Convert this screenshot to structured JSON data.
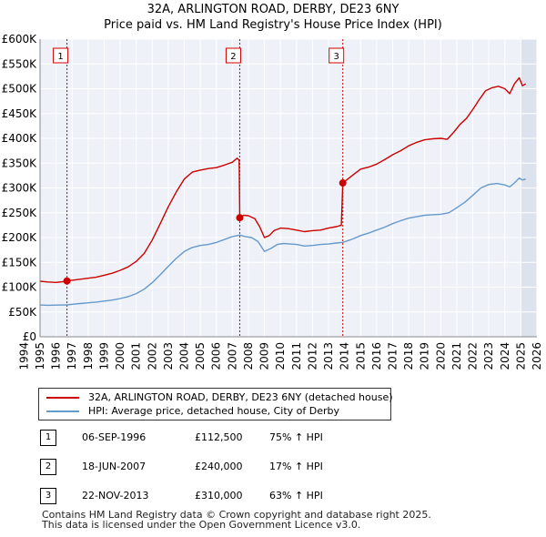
{
  "header": {
    "title_line1": "32A, ARLINGTON ROAD, DERBY, DE23 6NY",
    "title_line2": "Price paid vs. HM Land Registry's House Price Index (HPI)"
  },
  "chart_data": {
    "type": "line",
    "title": "32A, ARLINGTON ROAD, DERBY, DE23 6NY — Price paid vs. HM Land Registry's House Price Index (HPI)",
    "xlim": [
      1995.0,
      2026.0
    ],
    "ylim": [
      0,
      600000
    ],
    "x_ticks": [
      1994,
      1995,
      1996,
      1997,
      1998,
      1999,
      2000,
      2001,
      2002,
      2003,
      2004,
      2005,
      2006,
      2007,
      2008,
      2009,
      2010,
      2011,
      2012,
      2013,
      2014,
      2015,
      2016,
      2017,
      2018,
      2019,
      2020,
      2021,
      2022,
      2023,
      2024,
      2025,
      2026
    ],
    "y_ticks": [
      {
        "value": 0,
        "label": "£0"
      },
      {
        "value": 50000,
        "label": "£50K"
      },
      {
        "value": 100000,
        "label": "£100K"
      },
      {
        "value": 150000,
        "label": "£150K"
      },
      {
        "value": 200000,
        "label": "£200K"
      },
      {
        "value": 250000,
        "label": "£250K"
      },
      {
        "value": 300000,
        "label": "£300K"
      },
      {
        "value": 350000,
        "label": "£350K"
      },
      {
        "value": 400000,
        "label": "£400K"
      },
      {
        "value": 450000,
        "label": "£450K"
      },
      {
        "value": 500000,
        "label": "£500K"
      },
      {
        "value": 550000,
        "label": "£550K"
      },
      {
        "value": 600000,
        "label": "£600K"
      }
    ],
    "grid": true,
    "future_shade_from": 2025.0,
    "series": [
      {
        "name": "32A, ARLINGTON ROAD, DERBY, DE23 6NY (detached house)",
        "color": "#cc0000",
        "points": [
          [
            1995.0,
            112000
          ],
          [
            1995.5,
            110500
          ],
          [
            1996.0,
            109500
          ],
          [
            1996.4,
            111000
          ],
          [
            1996.68,
            112500
          ],
          [
            1997.0,
            114000
          ],
          [
            1997.5,
            116000
          ],
          [
            1998.0,
            118000
          ],
          [
            1998.5,
            120000
          ],
          [
            1999.0,
            124000
          ],
          [
            1999.5,
            128000
          ],
          [
            2000.0,
            134000
          ],
          [
            2000.5,
            141000
          ],
          [
            2001.0,
            152000
          ],
          [
            2001.5,
            168000
          ],
          [
            2002.0,
            195000
          ],
          [
            2002.5,
            228000
          ],
          [
            2003.0,
            262000
          ],
          [
            2003.5,
            292000
          ],
          [
            2004.0,
            318000
          ],
          [
            2004.5,
            332000
          ],
          [
            2005.0,
            336000
          ],
          [
            2005.5,
            339000
          ],
          [
            2006.0,
            341000
          ],
          [
            2006.5,
            346000
          ],
          [
            2007.0,
            352000
          ],
          [
            2007.3,
            360000
          ],
          [
            2007.42,
            356000
          ],
          [
            2007.46,
            240000
          ],
          [
            2007.7,
            245000
          ],
          [
            2008.0,
            244000
          ],
          [
            2008.4,
            238000
          ],
          [
            2008.7,
            222000
          ],
          [
            2009.0,
            200000
          ],
          [
            2009.3,
            204000
          ],
          [
            2009.6,
            214000
          ],
          [
            2010.0,
            219000
          ],
          [
            2010.5,
            218000
          ],
          [
            2011.0,
            215000
          ],
          [
            2011.5,
            212000
          ],
          [
            2012.0,
            214000
          ],
          [
            2012.5,
            215000
          ],
          [
            2013.0,
            219000
          ],
          [
            2013.5,
            222000
          ],
          [
            2013.8,
            225000
          ],
          [
            2013.89,
            310000
          ],
          [
            2014.2,
            318000
          ],
          [
            2014.6,
            328000
          ],
          [
            2015.0,
            338000
          ],
          [
            2015.5,
            342000
          ],
          [
            2016.0,
            348000
          ],
          [
            2016.5,
            357000
          ],
          [
            2017.0,
            367000
          ],
          [
            2017.5,
            375000
          ],
          [
            2018.0,
            385000
          ],
          [
            2018.5,
            392000
          ],
          [
            2019.0,
            397000
          ],
          [
            2019.5,
            399000
          ],
          [
            2020.0,
            400000
          ],
          [
            2020.4,
            398000
          ],
          [
            2020.8,
            412000
          ],
          [
            2021.2,
            428000
          ],
          [
            2021.6,
            440000
          ],
          [
            2022.0,
            458000
          ],
          [
            2022.4,
            478000
          ],
          [
            2022.8,
            496000
          ],
          [
            2023.2,
            502000
          ],
          [
            2023.6,
            505000
          ],
          [
            2024.0,
            500000
          ],
          [
            2024.3,
            490000
          ],
          [
            2024.6,
            510000
          ],
          [
            2024.9,
            522000
          ],
          [
            2025.1,
            506000
          ],
          [
            2025.3,
            510000
          ]
        ]
      },
      {
        "name": "HPI: Average price, detached house, City of Derby",
        "color": "#6699cc",
        "points": [
          [
            1995.0,
            64000
          ],
          [
            1995.5,
            63500
          ],
          [
            1996.0,
            63800
          ],
          [
            1996.68,
            64300
          ],
          [
            1997.0,
            65500
          ],
          [
            1997.5,
            67000
          ],
          [
            1998.0,
            68500
          ],
          [
            1998.5,
            70000
          ],
          [
            1999.0,
            72000
          ],
          [
            1999.5,
            74000
          ],
          [
            2000.0,
            77000
          ],
          [
            2000.5,
            81000
          ],
          [
            2001.0,
            87000
          ],
          [
            2001.5,
            96000
          ],
          [
            2002.0,
            109000
          ],
          [
            2002.5,
            125000
          ],
          [
            2003.0,
            142000
          ],
          [
            2003.5,
            158000
          ],
          [
            2004.0,
            172000
          ],
          [
            2004.5,
            180000
          ],
          [
            2005.0,
            184000
          ],
          [
            2005.5,
            186000
          ],
          [
            2006.0,
            190000
          ],
          [
            2006.5,
            196000
          ],
          [
            2007.0,
            202000
          ],
          [
            2007.46,
            205000
          ],
          [
            2007.8,
            202000
          ],
          [
            2008.2,
            200000
          ],
          [
            2008.6,
            192000
          ],
          [
            2009.0,
            172000
          ],
          [
            2009.4,
            178000
          ],
          [
            2009.8,
            186000
          ],
          [
            2010.2,
            188000
          ],
          [
            2010.6,
            187000
          ],
          [
            2011.0,
            186000
          ],
          [
            2011.5,
            183000
          ],
          [
            2012.0,
            184000
          ],
          [
            2012.5,
            186000
          ],
          [
            2013.0,
            187000
          ],
          [
            2013.5,
            189000
          ],
          [
            2013.89,
            190200
          ],
          [
            2014.5,
            197000
          ],
          [
            2015.0,
            204000
          ],
          [
            2015.5,
            209000
          ],
          [
            2016.0,
            215000
          ],
          [
            2016.5,
            221000
          ],
          [
            2017.0,
            228000
          ],
          [
            2017.5,
            234000
          ],
          [
            2018.0,
            239000
          ],
          [
            2018.5,
            242000
          ],
          [
            2019.0,
            245000
          ],
          [
            2019.5,
            246000
          ],
          [
            2020.0,
            247000
          ],
          [
            2020.5,
            250000
          ],
          [
            2021.0,
            260000
          ],
          [
            2021.5,
            271000
          ],
          [
            2022.0,
            285000
          ],
          [
            2022.5,
            300000
          ],
          [
            2023.0,
            307000
          ],
          [
            2023.5,
            309000
          ],
          [
            2024.0,
            306000
          ],
          [
            2024.3,
            302000
          ],
          [
            2024.6,
            310000
          ],
          [
            2024.9,
            320000
          ],
          [
            2025.1,
            316000
          ],
          [
            2025.3,
            318000
          ]
        ]
      }
    ],
    "sales": [
      {
        "label": "1",
        "x": 1996.68,
        "y": 112500
      },
      {
        "label": "2",
        "x": 2007.46,
        "y": 240000
      },
      {
        "label": "3",
        "x": 2013.89,
        "y": 310000
      }
    ]
  },
  "legend": {
    "property_label": "32A, ARLINGTON ROAD, DERBY, DE23 6NY (detached house)",
    "hpi_label": "HPI: Average price, detached house, City of Derby"
  },
  "sales_table": [
    {
      "num": "1",
      "date": "06-SEP-1996",
      "price": "£112,500",
      "hpi": "75% ↑ HPI"
    },
    {
      "num": "2",
      "date": "18-JUN-2007",
      "price": "£240,000",
      "hpi": "17% ↑ HPI"
    },
    {
      "num": "3",
      "date": "22-NOV-2013",
      "price": "£310,000",
      "hpi": "63% ↑ HPI"
    }
  ],
  "footer": {
    "line1": "Contains HM Land Registry data © Crown copyright and database right 2025.",
    "line2": "This data is licensed under the Open Government Licence v3.0."
  },
  "colors": {
    "property": "#cc0000",
    "hpi": "#6699cc",
    "plot_bg": "#eef2f8",
    "future_shade": "#dde3ee",
    "marker_line": "#cc0000"
  }
}
